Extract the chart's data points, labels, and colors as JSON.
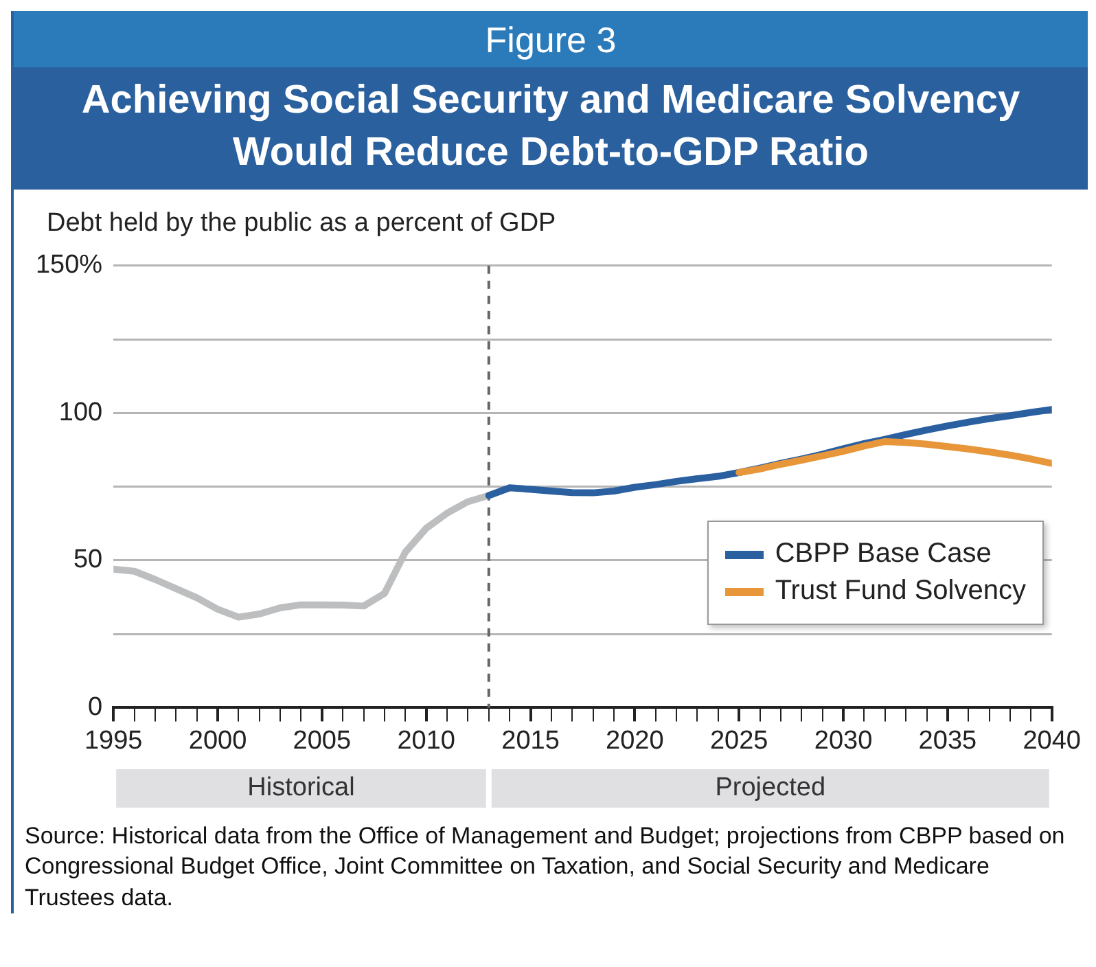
{
  "chart_data": {
    "type": "line",
    "subtitle": "Figure 3",
    "title": "Achieving Social Security and Medicare Solvency Would Reduce Debt-to-GDP Ratio",
    "ylabel": "Debt held by the public as a percent of GDP",
    "series": [
      {
        "color": "#bcbec0",
        "x": [
          1995,
          1996,
          1997,
          1998,
          1999,
          2000,
          2001,
          2002,
          2003,
          2004,
          2005,
          2006,
          2007,
          2008,
          2009,
          2010,
          2011,
          2012,
          2013
        ],
        "values": [
          47,
          46.3,
          43.5,
          40.4,
          37.3,
          33.4,
          30.7,
          31.8,
          33.9,
          34.9,
          34.9,
          34.8,
          34.5,
          38.8,
          52.8,
          60.9,
          66,
          69.9,
          72
        ]
      },
      {
        "name": "CBPP Base Case",
        "color": "#2a5fa0",
        "x": [
          2013,
          2014,
          2015,
          2016,
          2017,
          2018,
          2019,
          2020,
          2021,
          2022,
          2023,
          2024,
          2025,
          2026,
          2027,
          2028,
          2029,
          2030,
          2031,
          2032,
          2033,
          2034,
          2035,
          2036,
          2037,
          2038,
          2039,
          2040
        ],
        "values": [
          72,
          74.6,
          74.1,
          73.5,
          73,
          72.9,
          73.5,
          74.8,
          75.7,
          76.8,
          77.7,
          78.5,
          79.8,
          81.3,
          82.9,
          84.4,
          86,
          87.9,
          89.6,
          91.1,
          92.7,
          94.2,
          95.6,
          96.9,
          98.1,
          99.1,
          100.2,
          101.2
        ]
      },
      {
        "name": "Trust Fund Solvency",
        "color": "#e8963a",
        "x": [
          2025,
          2026,
          2027,
          2028,
          2029,
          2030,
          2031,
          2032,
          2033,
          2034,
          2035,
          2036,
          2037,
          2038,
          2039,
          2040
        ],
        "values": [
          79.8,
          81,
          82.6,
          84,
          85.5,
          87,
          88.8,
          90.3,
          90,
          89.4,
          88.6,
          87.8,
          86.8,
          85.7,
          84.4,
          82.9
        ]
      }
    ],
    "xlim": [
      1995,
      2040
    ],
    "xticks": [
      1995,
      {
        "value": 1996,
        "label": null
      },
      {
        "value": 1997,
        "label": null
      },
      {
        "value": 1998,
        "label": null
      },
      {
        "value": 1999,
        "label": null
      },
      2000,
      {
        "value": 2001,
        "label": null
      },
      {
        "value": 2002,
        "label": null
      },
      {
        "value": 2003,
        "label": null
      },
      {
        "value": 2004,
        "label": null
      },
      2005,
      {
        "value": 2006,
        "label": null
      },
      {
        "value": 2007,
        "label": null
      },
      {
        "value": 2008,
        "label": null
      },
      {
        "value": 2009,
        "label": null
      },
      2010,
      {
        "value": 2011,
        "label": null
      },
      {
        "value": 2012,
        "label": null
      },
      {
        "value": 2013,
        "label": null
      },
      {
        "value": 2014,
        "label": null
      },
      2015,
      {
        "value": 2016,
        "label": null
      },
      {
        "value": 2017,
        "label": null
      },
      {
        "value": 2018,
        "label": null
      },
      {
        "value": 2019,
        "label": null
      },
      2020,
      {
        "value": 2021,
        "label": null
      },
      {
        "value": 2022,
        "label": null
      },
      {
        "value": 2023,
        "label": null
      },
      {
        "value": 2024,
        "label": null
      },
      2025,
      {
        "value": 2026,
        "label": null
      },
      {
        "value": 2027,
        "label": null
      },
      {
        "value": 2028,
        "label": null
      },
      {
        "value": 2029,
        "label": null
      },
      2030,
      {
        "value": 2031,
        "label": null
      },
      {
        "value": 2032,
        "label": null
      },
      {
        "value": 2033,
        "label": null
      },
      {
        "value": 2034,
        "label": null
      },
      2035,
      {
        "value": 2036,
        "label": null
      },
      {
        "value": 2037,
        "label": null
      },
      {
        "value": 2038,
        "label": null
      },
      {
        "value": 2039,
        "label": null
      },
      2040
    ],
    "ylim": [
      0,
      150
    ],
    "yticks": [
      0,
      {
        "value": 25,
        "label": null
      },
      50,
      {
        "value": 75,
        "label": null
      },
      100,
      {
        "value": 125,
        "label": null
      },
      {
        "value": 150,
        "label": "150%"
      }
    ],
    "grid": "y",
    "legend": "right",
    "marker": "none",
    "line_style": "solid",
    "ref_lines": [
      {
        "axis": "x",
        "value": 2013,
        "color": "#666666",
        "line_style": "dashed"
      }
    ],
    "annotations": [
      "Historical",
      "Projected",
      "Source: Historical data from the Office of Management and Budget; projections from CBPP based on Congressional Budget Office, Joint Committee on Taxation, and Social Security and Medicare Trustees data."
    ]
  }
}
